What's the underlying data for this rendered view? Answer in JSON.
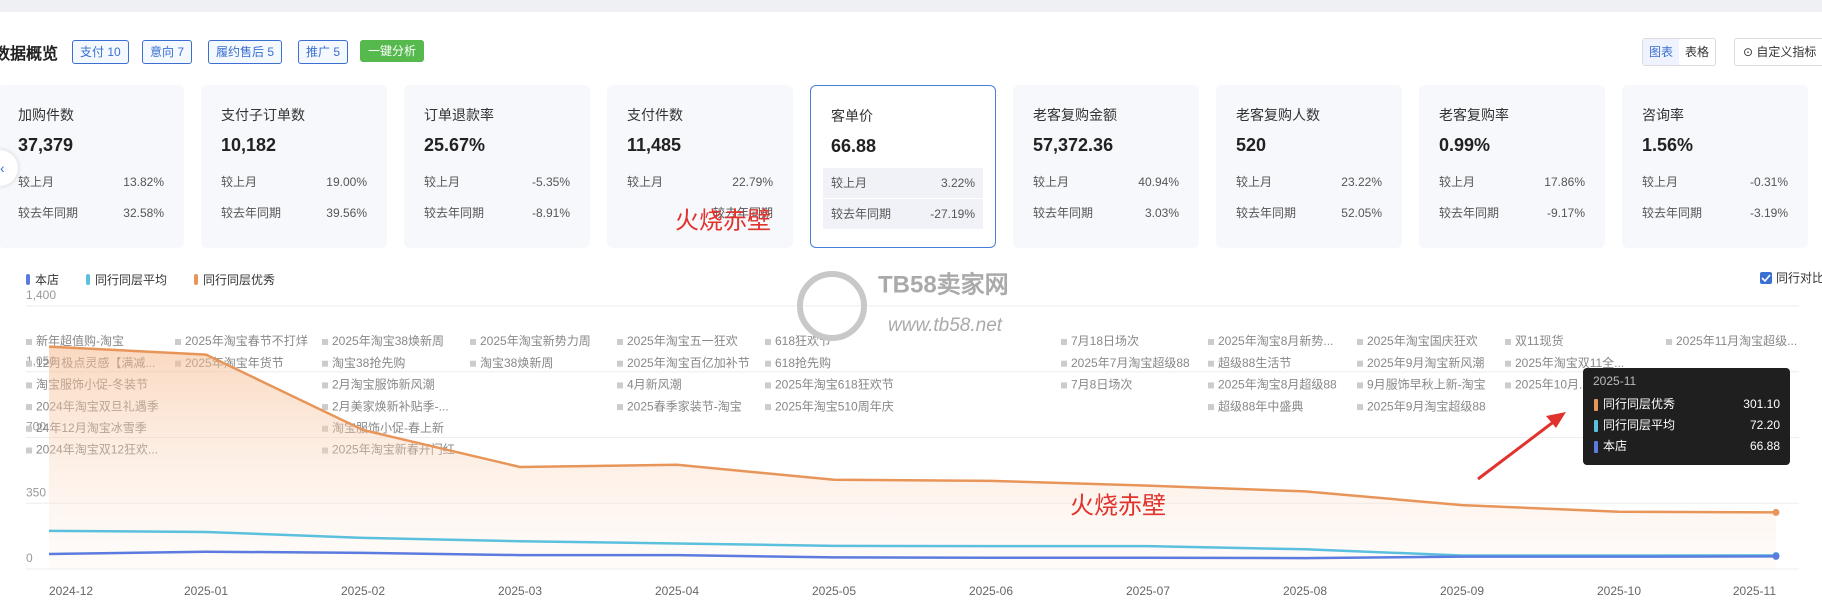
{
  "header": {
    "title": "数据概览",
    "tags": [
      "支付 10",
      "意向 7",
      "履约售后 5",
      "推广 5"
    ],
    "analyze": "一键分析",
    "views": [
      "图表",
      "表格"
    ],
    "custom": "自定义指标"
  },
  "cards": [
    {
      "title": "加购件数",
      "value": "37,379",
      "rows": [
        {
          "label": "较上月",
          "value": "13.82%"
        },
        {
          "label": "较去年同期",
          "value": "32.58%"
        }
      ]
    },
    {
      "title": "支付子订单数",
      "value": "10,182",
      "rows": [
        {
          "label": "较上月",
          "value": "19.00%"
        },
        {
          "label": "较去年同期",
          "value": "39.56%"
        }
      ]
    },
    {
      "title": "订单退款率",
      "value": "25.67%",
      "rows": [
        {
          "label": "较上月",
          "value": "-5.35%"
        },
        {
          "label": "较去年同期",
          "value": "-8.91%"
        }
      ]
    },
    {
      "title": "支付件数",
      "value": "11,485",
      "rows": [
        {
          "label": "较上月",
          "value": "22.79%"
        },
        {
          "label": "较去年同期"
        }
      ]
    },
    {
      "title": "客单价",
      "value": "66.88",
      "rows": [
        {
          "label": "较上月",
          "value": "3.22%"
        },
        {
          "label": "较去年同期",
          "value": "-27.19%"
        }
      ]
    },
    {
      "title": "老客复购金额",
      "value": "57,372.36",
      "rows": [
        {
          "label": "较上月",
          "value": "40.94%"
        },
        {
          "label": "较去年同期",
          "value": "3.03%"
        }
      ]
    },
    {
      "title": "老客复购人数",
      "value": "520",
      "rows": [
        {
          "label": "较上月",
          "value": "23.22%"
        },
        {
          "label": "较去年同期",
          "value": "52.05%"
        }
      ]
    },
    {
      "title": "老客复购率",
      "value": "0.99%",
      "rows": [
        {
          "label": "较上月",
          "value": "17.86%"
        },
        {
          "label": "较去年同期",
          "value": "-9.17%"
        }
      ]
    },
    {
      "title": "咨询率",
      "value": "1.56%",
      "rows": [
        {
          "label": "较上月",
          "value": "-0.31%"
        },
        {
          "label": "较去年同期",
          "value": "-3.19%"
        }
      ]
    }
  ],
  "watermarks": [
    "火烧赤壁",
    "火烧赤壁",
    "TB58卖家网",
    "www.tb58.net"
  ],
  "compare": "同行对比",
  "chart_data": {
    "type": "line",
    "categories": [
      "2024-12",
      "2025-01",
      "2025-02",
      "2025-03",
      "2025-04",
      "2025-05",
      "2025-06",
      "2025-07",
      "2025-08",
      "2025-09",
      "2025-10",
      "2025-11"
    ],
    "series": [
      {
        "name": "本店",
        "color": "#5b7be0",
        "values": [
          80,
          92,
          86,
          74,
          74,
          62,
          60,
          60,
          58,
          66,
          66,
          66.88
        ]
      },
      {
        "name": "同行同层平均",
        "color": "#5bc0de",
        "values": [
          203,
          197,
          166,
          148,
          136,
          123,
          122,
          122,
          105,
          72,
          72,
          72.2
        ]
      },
      {
        "name": "同行同层优秀",
        "color": "#e8955a",
        "values": [
          1184,
          1141,
          740,
          543,
          555,
          475,
          469,
          444,
          413,
          340,
          305,
          301.1
        ]
      }
    ],
    "ylim": [
      0,
      1400
    ],
    "yticks": [
      0,
      350,
      700,
      {
        "value": 1050,
        "label": "1,050"
      },
      {
        "value": 1400,
        "label": "1,400"
      }
    ],
    "events": [
      [
        "新年超值购-淘宝",
        "12月极点灵感【满减...",
        "淘宝服饰小促-冬装节",
        "2024年淘宝双旦礼遇季",
        "24年12月淘宝冰雪季",
        "2024年淘宝双12狂欢..."
      ],
      [
        "2025年淘宝春节不打烊",
        "2025年淘宝年货节"
      ],
      [
        "2025年淘宝38焕新周",
        "淘宝38抢先购",
        "2月淘宝服饰新风潮",
        "2月美家焕新补贴季-...",
        "淘宝服饰小促-春上新",
        "2025年淘宝新春开门红"
      ],
      [
        "2025年淘宝新势力周",
        "淘宝38焕新周"
      ],
      [
        "2025年淘宝五一狂欢",
        "2025年淘宝百亿加补节",
        "4月新风潮",
        "2025春季家装节-淘宝"
      ],
      [
        "618狂欢节",
        "618抢先购",
        "2025年淘宝618狂欢节",
        "2025年淘宝510周年庆"
      ],
      [
        "7月18日场次",
        "2025年7月淘宝超级88",
        "7月8日场次"
      ],
      [
        "2025年淘宝8月新势...",
        "超级88生活节",
        "2025年淘宝8月超级88",
        "超级88年中盛典"
      ],
      [
        "2025年淘宝国庆狂欢",
        "2025年9月淘宝新风潮",
        "9月服饰早秋上新-淘宝",
        "2025年9月淘宝超级88"
      ],
      [
        "双11现货",
        "2025年淘宝双11全...",
        "2025年10月..."
      ],
      [
        "2025年11月淘宝超级..."
      ]
    ],
    "tooltip": {
      "title": "2025-11",
      "rows": [
        {
          "name": "同行同层优秀",
          "value": "301.10"
        },
        {
          "name": "同行同层平均",
          "value": "72.20"
        },
        {
          "name": "本店",
          "value": "66.88"
        }
      ]
    }
  }
}
